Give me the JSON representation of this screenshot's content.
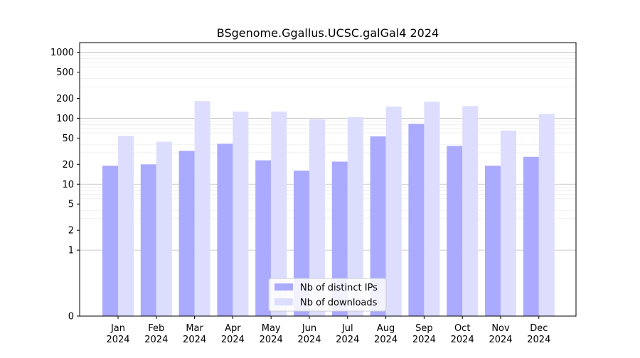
{
  "chart_data": {
    "type": "bar",
    "title": "BSgenome.Ggallus.UCSC.galGal4 2024",
    "xlabel": "",
    "ylabel": "",
    "y_scale": "symlog",
    "ylim": [
      0,
      1400
    ],
    "y_ticks": [
      0,
      1,
      2,
      5,
      10,
      20,
      50,
      100,
      200,
      500,
      1000
    ],
    "grid": true,
    "legend_position": "bottom-center",
    "categories": [
      [
        "Jan",
        "2024"
      ],
      [
        "Feb",
        "2024"
      ],
      [
        "Mar",
        "2024"
      ],
      [
        "Apr",
        "2024"
      ],
      [
        "May",
        "2024"
      ],
      [
        "Jun",
        "2024"
      ],
      [
        "Jul",
        "2024"
      ],
      [
        "Aug",
        "2024"
      ],
      [
        "Sep",
        "2024"
      ],
      [
        "Oct",
        "2024"
      ],
      [
        "Nov",
        "2024"
      ],
      [
        "Dec",
        "2024"
      ]
    ],
    "series": [
      {
        "name": "Nb of distinct IPs",
        "color": "#aaaaff",
        "values": [
          19,
          20,
          32,
          41,
          23,
          16,
          22,
          53,
          82,
          38,
          19,
          26
        ]
      },
      {
        "name": "Nb of downloads",
        "color": "#ddddff",
        "values": [
          54,
          44,
          182,
          126,
          126,
          96,
          104,
          150,
          178,
          153,
          65,
          116
        ]
      }
    ]
  }
}
